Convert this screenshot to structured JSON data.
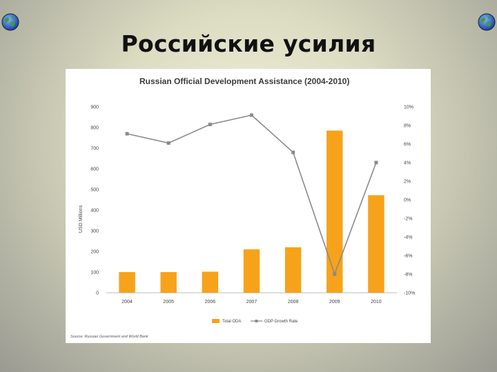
{
  "slide": {
    "title": "Российские усилия",
    "icons": [
      "globe-icon",
      "globe-icon"
    ]
  },
  "colors": {
    "bar": "#f7a21b",
    "line": "#8a8a8a",
    "marker": "#8a8a8a",
    "axis": "#bbbbbb"
  },
  "chart_data": {
    "type": "bar",
    "title": "Russian Official Development Assistance (2004-2010)",
    "categories": [
      "2004",
      "2005",
      "2006",
      "2007",
      "2008",
      "2009",
      "2010"
    ],
    "series": [
      {
        "name": "Total ODA",
        "type": "bar",
        "axis": "left",
        "values": [
          100,
          100,
          102,
          210,
          220,
          785,
          472
        ]
      },
      {
        "name": "GDP Growth Rate",
        "type": "line",
        "axis": "right",
        "values": [
          7.1,
          6.1,
          8.1,
          9.1,
          5.1,
          -8.0,
          4.0
        ]
      }
    ],
    "ylabel": "USD Millions",
    "xlabel": "",
    "ylim": [
      0,
      900
    ],
    "yticks": [
      "0",
      "100",
      "200",
      "300",
      "400",
      "500",
      "600",
      "700",
      "800",
      "900"
    ],
    "y2lim": [
      -10,
      10
    ],
    "y2ticks": [
      "-10%",
      "-8%",
      "-6%",
      "-4%",
      "-2%",
      "0%",
      "2%",
      "4%",
      "6%",
      "8%",
      "10%"
    ],
    "legend": {
      "placement": "bottom-center",
      "entries": [
        "Total ODA",
        "GDP Growth Rate"
      ]
    },
    "grid": false,
    "source": "Source: Russian Government and World Bank"
  }
}
